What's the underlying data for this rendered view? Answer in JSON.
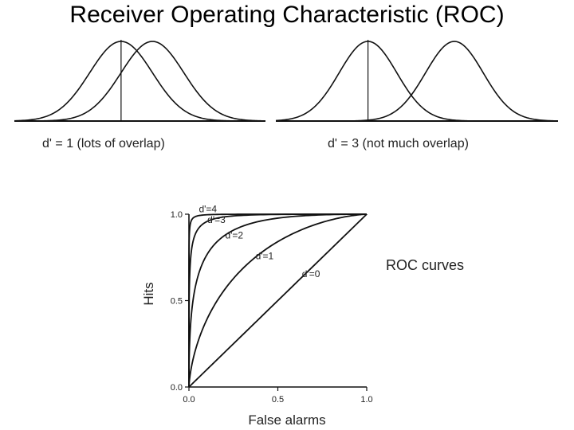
{
  "title": "Receiver Operating Characteristic (ROC)",
  "chart_data": [
    {
      "type": "line",
      "caption": "d' = 1 (lots of overlap)",
      "d_prime": 1,
      "series": [
        {
          "mean": 0,
          "sd": 1
        },
        {
          "mean": 1,
          "sd": 1
        }
      ],
      "criterion": 0,
      "xlim": [
        -3.4,
        4.6
      ],
      "color": "#111111"
    },
    {
      "type": "line",
      "caption": "d' = 3 (not much overlap)",
      "d_prime": 3,
      "series": [
        {
          "mean": 0,
          "sd": 1
        },
        {
          "mean": 3,
          "sd": 1
        }
      ],
      "criterion": 0,
      "xlim": [
        -3.2,
        6.6
      ],
      "color": "#111111"
    },
    {
      "type": "line",
      "xlabel": "False alarms",
      "ylabel": "Hits",
      "xlim": [
        0,
        1
      ],
      "ylim": [
        0,
        1
      ],
      "x_ticks": [
        "0.0",
        "0.5",
        "1.0"
      ],
      "y_ticks": [
        "0.0",
        "0.5",
        "1.0"
      ],
      "grid": false,
      "annotation": "ROC curves",
      "series": [
        {
          "name": "d'=4",
          "d_prime": 4
        },
        {
          "name": "d'=3",
          "d_prime": 3
        },
        {
          "name": "d'=2",
          "d_prime": 2
        },
        {
          "name": "d'=1",
          "d_prime": 1
        },
        {
          "name": "d'=0",
          "d_prime": 0
        }
      ]
    }
  ]
}
